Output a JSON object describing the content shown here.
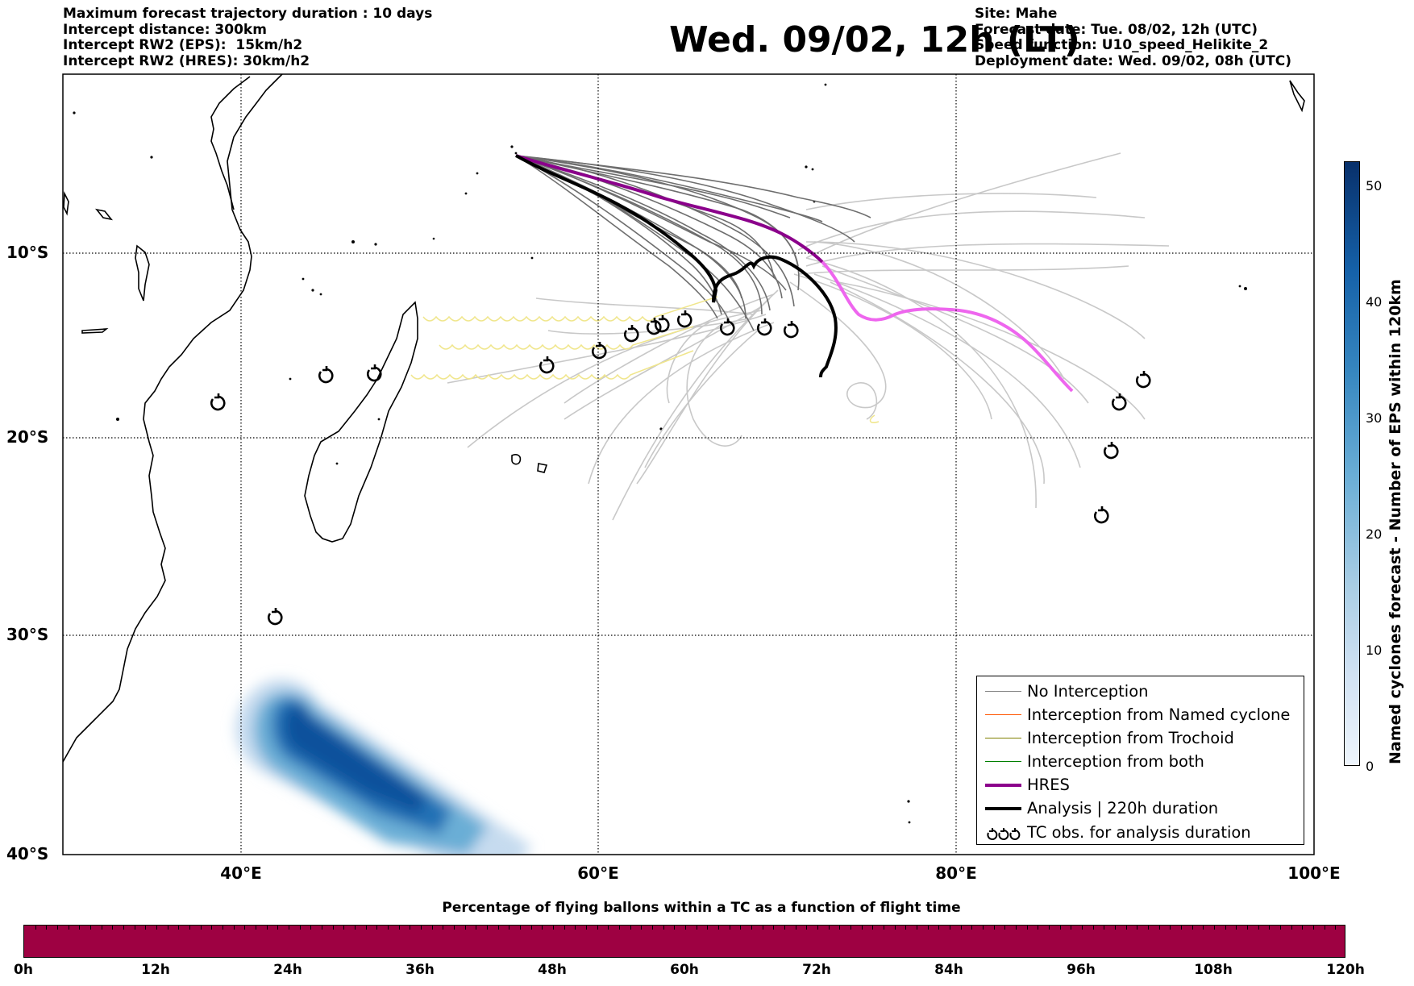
{
  "header_left": [
    "Maximum forecast trajectory duration : 10 days",
    "Intercept distance: 300km",
    "Intercept RW2 (EPS):  15km/h2",
    "Intercept RW2 (HRES): 30km/h2"
  ],
  "title": "Wed. 09/02, 12h (LT)",
  "header_right": [
    "Site: Mahe",
    "Forecast date: Tue. 08/02, 12h (UTC)",
    "Speed function: U10_speed_Helikite_2",
    "Deployment date: Wed. 09/02, 08h (UTC)"
  ],
  "map": {
    "lon_range": [
      30,
      100
    ],
    "lat_range": [
      -40,
      -0.1
    ],
    "lat_labels": [
      "10°S",
      "20°S",
      "30°S",
      "40°S"
    ],
    "lon_labels": [
      "40°E",
      "60°E",
      "80°E",
      "100°E"
    ],
    "grid": true,
    "launch_site": "Mahe"
  },
  "legend": {
    "items": [
      {
        "label": "No Interception",
        "color": "#808080",
        "style": "thin"
      },
      {
        "label": "Interception from Named cyclone",
        "color": "#ff5500",
        "style": "thin"
      },
      {
        "label": "Interception from Trochoid",
        "color": "#808000",
        "style": "thin"
      },
      {
        "label": "Interception from both",
        "color": "#008000",
        "style": "thin"
      },
      {
        "label": "HRES",
        "color": "#8b008b",
        "style": "thick"
      },
      {
        "label": "Analysis | 220h duration",
        "color": "#000000",
        "style": "thick"
      },
      {
        "label": "TC obs. for analysis duration",
        "color": "#000000",
        "style": "tc-symbol"
      }
    ]
  },
  "colorbar": {
    "label": "Named cyclones forecast - Number of EPS within 120km",
    "ticks": [
      "0",
      "10",
      "20",
      "30",
      "40",
      "50"
    ],
    "max": 52,
    "colors": [
      "#eef5fc",
      "#a8cde4",
      "#3787c0",
      "#08306b"
    ]
  },
  "timeline": {
    "title": "Percentage of flying ballons within a TC as a function of flight time",
    "ticks": [
      "0h",
      "12h",
      "24h",
      "36h",
      "48h",
      "60h",
      "72h",
      "84h",
      "96h",
      "108h",
      "120h"
    ],
    "color": "#9e0142"
  }
}
